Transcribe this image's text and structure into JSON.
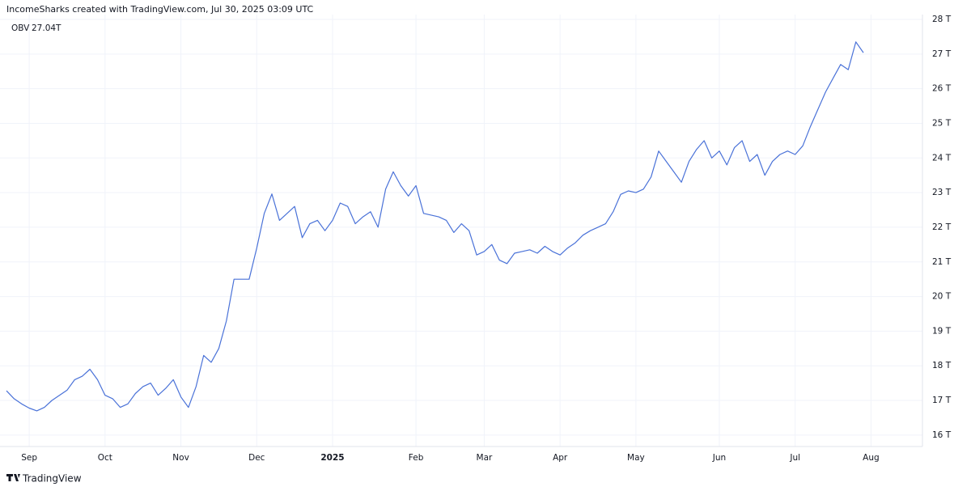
{
  "header": "IncomeSharks created with TradingView.com, Jul 30, 2025 03:09 UTC",
  "footer": "TradingView",
  "chart_data": {
    "type": "line",
    "grid": true,
    "categories": [
      null,
      null,
      null,
      "Sep",
      null,
      null,
      null,
      null,
      null,
      null,
      null,
      null,
      null,
      "Oct",
      null,
      null,
      null,
      null,
      null,
      null,
      null,
      null,
      null,
      "Nov",
      null,
      null,
      null,
      null,
      null,
      null,
      null,
      null,
      null,
      "Dec",
      null,
      null,
      null,
      null,
      null,
      null,
      null,
      null,
      null,
      "2025",
      null,
      null,
      null,
      null,
      null,
      null,
      null,
      null,
      null,
      null,
      "Feb",
      null,
      null,
      null,
      null,
      null,
      null,
      null,
      null,
      "Mar",
      null,
      null,
      null,
      null,
      null,
      null,
      null,
      null,
      null,
      "Apr",
      null,
      null,
      null,
      null,
      null,
      null,
      null,
      null,
      null,
      "May",
      null,
      null,
      null,
      null,
      null,
      null,
      null,
      null,
      null,
      null,
      "Jun",
      null,
      null,
      null,
      null,
      null,
      null,
      null,
      null,
      null,
      "Jul",
      null,
      null,
      null,
      null,
      null,
      null,
      null,
      null,
      null,
      "Aug"
    ],
    "series": [
      {
        "name": "OBV",
        "color": "#4a72d8",
        "values": [
          17.28,
          17.05,
          16.9,
          16.78,
          16.7,
          16.8,
          17.0,
          17.15,
          17.3,
          17.6,
          17.7,
          17.9,
          17.6,
          17.15,
          17.05,
          16.8,
          16.9,
          17.2,
          17.4,
          17.5,
          17.15,
          17.35,
          17.6,
          17.1,
          16.8,
          17.4,
          18.3,
          18.1,
          18.5,
          19.3,
          20.5,
          20.5,
          20.5,
          21.4,
          22.4,
          22.96,
          22.2,
          22.4,
          22.6,
          21.7,
          22.1,
          22.2,
          21.9,
          22.2,
          22.7,
          22.6,
          22.1,
          22.3,
          22.45,
          22.0,
          23.1,
          23.6,
          23.2,
          22.9,
          23.2,
          22.4,
          22.35,
          22.3,
          22.2,
          21.85,
          22.1,
          21.9,
          21.2,
          21.3,
          21.5,
          21.05,
          20.95,
          21.25,
          21.3,
          21.35,
          21.25,
          21.45,
          21.3,
          21.2,
          21.4,
          21.55,
          21.77,
          21.9,
          22.0,
          22.1,
          22.45,
          22.95,
          23.05,
          23.0,
          23.1,
          23.45,
          24.2,
          23.9,
          23.6,
          23.3,
          23.9,
          24.25,
          24.5,
          24.0,
          24.2,
          23.8,
          24.3,
          24.5,
          23.9,
          24.1,
          23.5,
          23.9,
          24.1,
          24.2,
          24.1,
          24.35,
          24.9,
          25.4,
          25.9,
          26.3,
          26.7,
          26.55,
          27.35,
          27.04,
          null
        ],
        "value_labels": [
          null,
          null,
          null,
          null,
          null,
          null,
          null,
          null,
          null,
          null,
          null,
          null,
          null,
          null,
          null,
          null,
          null,
          null,
          null,
          null,
          null,
          null,
          null,
          null,
          null,
          null,
          null,
          null,
          null,
          null,
          null,
          null,
          null,
          null,
          null,
          null,
          null,
          null,
          null,
          null,
          null,
          null,
          null,
          null,
          null,
          null,
          null,
          null,
          null,
          null,
          null,
          null,
          null,
          null,
          null,
          null,
          null,
          null,
          null,
          null,
          null,
          null,
          null,
          null,
          null,
          null,
          null,
          null,
          null,
          null,
          null,
          null,
          null,
          null,
          null,
          null,
          null,
          null,
          null,
          null,
          null,
          null,
          null,
          null,
          null,
          null,
          null,
          null,
          null,
          null,
          null,
          null,
          null,
          null,
          null,
          null,
          null,
          null,
          null,
          null,
          null,
          null,
          null,
          null,
          null,
          null,
          null,
          null,
          null,
          null,
          null,
          null,
          null,
          "27.04T",
          null
        ]
      }
    ],
    "ylim": [
      15.67,
      28.14
    ],
    "yticks": [
      {
        "value": 16,
        "label": "16 T"
      },
      {
        "value": 17,
        "label": "17 T"
      },
      {
        "value": 18,
        "label": "18 T"
      },
      {
        "value": 19,
        "label": "19 T"
      },
      {
        "value": 20,
        "label": "20 T"
      },
      {
        "value": 21,
        "label": "21 T"
      },
      {
        "value": 22,
        "label": "22 T"
      },
      {
        "value": 23,
        "label": "23 T"
      },
      {
        "value": 24,
        "label": "24 T"
      },
      {
        "value": 25,
        "label": "25 T"
      },
      {
        "value": 26,
        "label": "26 T"
      },
      {
        "value": 27,
        "label": "27 T"
      },
      {
        "value": 28,
        "label": "28 T"
      }
    ]
  }
}
